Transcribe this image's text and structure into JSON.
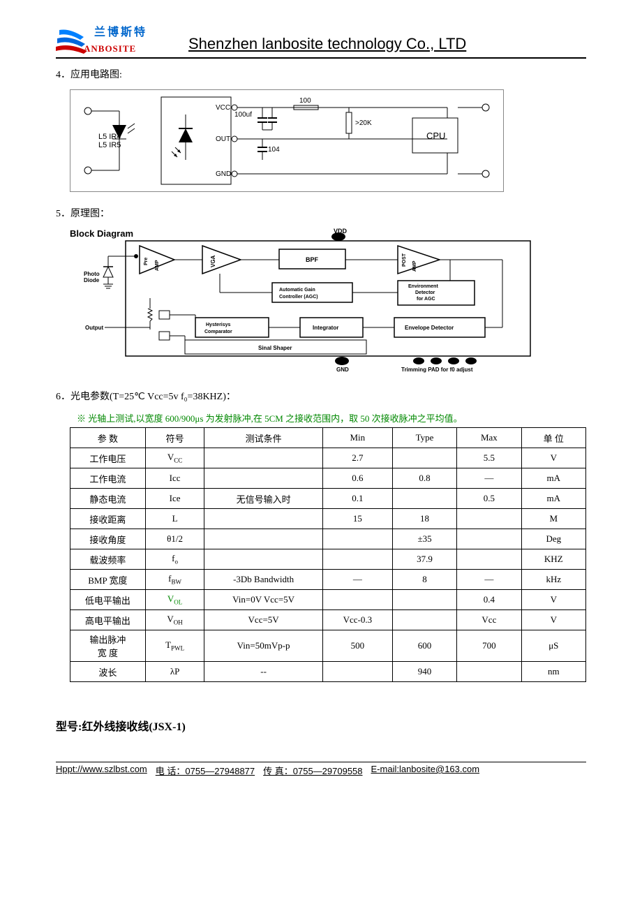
{
  "header": {
    "logo_cn": "兰博斯特",
    "logo_en": "ANBOSITE",
    "company": "Shenzhen lanbosite technology Co., LTD"
  },
  "sections": {
    "s4_title": "4．应用电路图:",
    "s5_title": "5．原理图：",
    "s6_title": "6．光电参数(T=25℃  Vcc=5v  f₀=38KHZ)：",
    "block_diagram_label": "Block Diagram"
  },
  "circuit": {
    "l5ir4": "L5 IR4",
    "l5ir5": "L5 IR5",
    "vcc": "VCC",
    "out": "OUT",
    "gnd": "GND",
    "cap100uf": "100uf",
    "r100": "100",
    "cap104": "104",
    "r20k": ">20K",
    "cpu": "CPU"
  },
  "block_diagram": {
    "vdd": "VDD",
    "photo_diode": "Photo\nDiode",
    "pre_amp": "Pre\nAMP",
    "vga": "VGA",
    "bpf": "BPF",
    "post_amp": "POST\nAMP",
    "agc": "Automatic Gain\nController (AGC)",
    "env_det": "Environment\nDetector\nfor AGC",
    "hyst": "Hysterisys\nComparator",
    "integrator": "Integrator",
    "envelope": "Envelope Detector",
    "sinal": "Sinal Shaper",
    "output": "Output",
    "gnd": "GND",
    "trim": "Trimming PAD for f0 adjust"
  },
  "note_green": "※  光轴上测试,以宽度 600/900μs 为发射脉冲,在 5CM 之接收范围内，取 50 次接收脉冲之平均值。",
  "table": {
    "headers": [
      "参    数",
      "符号",
      "测试条件",
      "Min",
      "Type",
      "Max",
      "单 位"
    ],
    "rows": [
      {
        "param": "工作电压",
        "sym": "V",
        "sub": "CC",
        "cond": "",
        "min": "2.7",
        "typ": "",
        "max": "5.5",
        "unit": "V"
      },
      {
        "param": "工作电流",
        "sym": "Icc",
        "sub": "",
        "cond": "",
        "min": "0.6",
        "typ": "0.8",
        "max": "—",
        "unit": "mA"
      },
      {
        "param": "静态电流",
        "sym": "Ice",
        "sub": "",
        "cond": "无信号输入时",
        "min": "0.1",
        "typ": "",
        "max": "0.5",
        "unit": "mA"
      },
      {
        "param": "接收距离",
        "sym": "L",
        "sub": "",
        "cond": "",
        "min": "15",
        "typ": "18",
        "max": "",
        "unit": "M"
      },
      {
        "param": "接收角度",
        "sym": "θ1/2",
        "sub": "",
        "cond": "",
        "min": "",
        "typ": "±35",
        "max": "",
        "unit": "Deg"
      },
      {
        "param": "载波频率",
        "sym": "f",
        "sub": "o",
        "cond": "",
        "min": "",
        "typ": "37.9",
        "max": "",
        "unit": "KHZ"
      },
      {
        "param": "BMP 宽度",
        "sym": "f",
        "sub": "BW",
        "cond": "-3Db Bandwidth",
        "min": "—",
        "typ": "8",
        "max": "—",
        "unit": "kHz"
      },
      {
        "param": "低电平输出",
        "sym": "V",
        "sub": "OL",
        "green": true,
        "cond": "Vin=0V  Vcc=5V",
        "min": "",
        "typ": "",
        "max": "0.4",
        "unit": "V"
      },
      {
        "param": "高电平输出",
        "sym": "V",
        "sub": "OH",
        "cond": "Vcc=5V",
        "min": "Vcc-0.3",
        "typ": "",
        "max": "Vcc",
        "unit": "V"
      },
      {
        "param": "输出脉冲\n宽    度",
        "sym": "T",
        "sub": "PWL",
        "cond": "Vin=50mVp-p",
        "min": "500",
        "typ": "600",
        "max": "700",
        "unit": "μS"
      },
      {
        "param": "波长",
        "sym": "λP",
        "sub": "",
        "cond": "--",
        "min": "",
        "typ": "940",
        "max": "",
        "unit": "nm"
      }
    ]
  },
  "model": "型号:红外线接收线(JSX-1)",
  "footer": {
    "url": "Hppt://www.szlbst.com",
    "tel": "电 话：0755—27948877",
    "fax": "传 真：0755—29709558",
    "email": "E-mail:lanbosite@163.com"
  }
}
